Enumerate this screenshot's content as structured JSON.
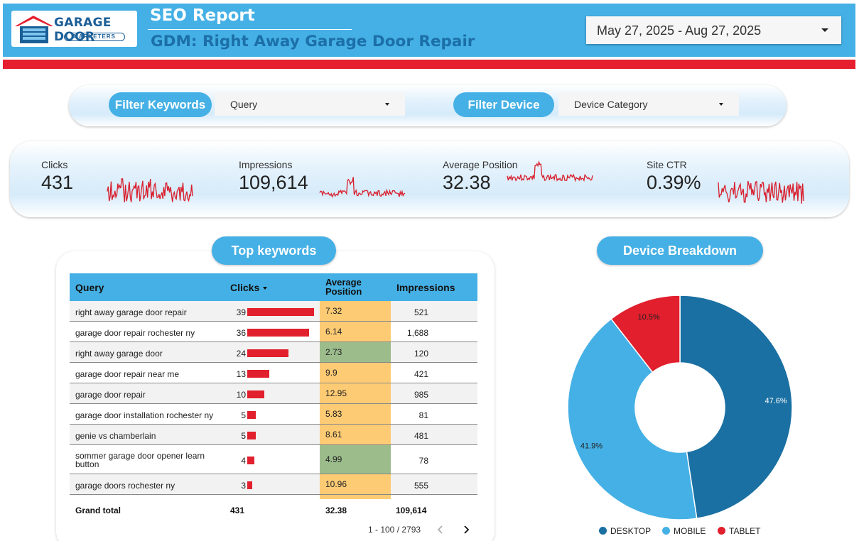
{
  "header": {
    "logo_text": "GARAGE DOOR",
    "logo_subtext": "MARKETERS",
    "title": "SEO Report",
    "subtitle": "GDM: Right Away Garage Door Repair",
    "date_range": "May 27, 2025 - Aug 27, 2025"
  },
  "filters": {
    "keywords_label": "Filter Keywords",
    "keywords_value": "Query",
    "device_label": "Filter Device",
    "device_value": "Device Category"
  },
  "kpis": [
    {
      "label": "Clicks",
      "value": "431"
    },
    {
      "label": "Impressions",
      "value": "109,614"
    },
    {
      "label": "Average Position",
      "value": "32.38"
    },
    {
      "label": "Site CTR",
      "value": "0.39%"
    }
  ],
  "top_keywords": {
    "title": "Top keywords",
    "columns": {
      "query": "Query",
      "clicks": "Clicks",
      "position_line1": "Average",
      "position_line2": "Position",
      "impressions": "Impressions"
    },
    "rows": [
      {
        "query": "right away garage door repair",
        "clicks": 39,
        "position": "7.32",
        "impressions": "521",
        "good": false
      },
      {
        "query": "garage door repair rochester ny",
        "clicks": 36,
        "position": "6.14",
        "impressions": "1,688",
        "good": false
      },
      {
        "query": "right away garage door",
        "clicks": 24,
        "position": "2.73",
        "impressions": "120",
        "good": true
      },
      {
        "query": "garage door repair near me",
        "clicks": 13,
        "position": "9.9",
        "impressions": "421",
        "good": false
      },
      {
        "query": "garage door repair",
        "clicks": 10,
        "position": "12.95",
        "impressions": "985",
        "good": false
      },
      {
        "query": "garage door installation rochester ny",
        "clicks": 5,
        "position": "5.83",
        "impressions": "81",
        "good": false
      },
      {
        "query": "genie vs chamberlain",
        "clicks": 5,
        "position": "8.61",
        "impressions": "481",
        "good": false
      },
      {
        "query_line1": "sommer garage door opener learn",
        "query_line2": "button",
        "clicks": 4,
        "position": "4.99",
        "impressions": "78",
        "good": true
      },
      {
        "query": "garage doors rochester ny",
        "clicks": 3,
        "position": "10.96",
        "impressions": "555",
        "good": false
      }
    ],
    "grand_total": {
      "label": "Grand total",
      "clicks": "431",
      "position": "32.38",
      "impressions": "109,614"
    },
    "pagination": "1 - 100 / 2793"
  },
  "device_breakdown": {
    "title": "Device Breakdown",
    "legend": [
      "DESKTOP",
      "MOBILE",
      "TABLET"
    ]
  },
  "chart_data": {
    "type": "pie",
    "categories": [
      "DESKTOP",
      "MOBILE",
      "TABLET"
    ],
    "values": [
      47.6,
      41.9,
      10.5
    ],
    "labels": [
      "47.6%",
      "41.9%",
      "10.5%"
    ],
    "colors": [
      "#1a70a2",
      "#45b0e5",
      "#e11f2d"
    ],
    "donut": true,
    "legend": "bottom"
  },
  "colors": {
    "primary": "#45b0e5",
    "accent_red": "#e51f2d",
    "position_warn": "#fdcb74",
    "position_good": "#9cbc8c"
  }
}
